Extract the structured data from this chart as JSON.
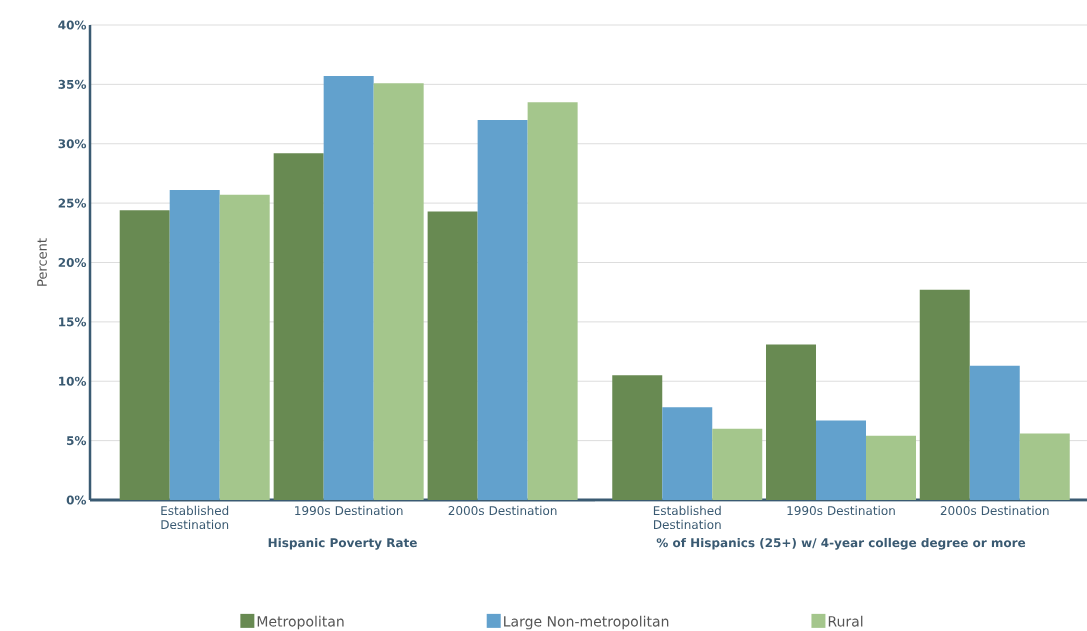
{
  "chart_data": [
    {
      "type": "bar",
      "xlabel": "Hispanic Poverty Rate",
      "ylabel": "Percent",
      "categories": [
        "Established Destination",
        "1990s Destination",
        "2000s Destination"
      ],
      "series": [
        {
          "name": "Metropolitan",
          "color": "#688a52",
          "values": [
            24.4,
            29.2,
            24.3
          ]
        },
        {
          "name": "Large Non-metropolitan",
          "color": "#62a1cd",
          "values": [
            26.1,
            35.7,
            32.0
          ]
        },
        {
          "name": "Rural",
          "color": "#a4c68c",
          "values": [
            25.7,
            35.1,
            33.5
          ]
        }
      ],
      "ylim": [
        0,
        40
      ],
      "yticks": [
        {
          "value": 0,
          "label": "0%"
        },
        {
          "value": 5,
          "label": "5%"
        },
        {
          "value": 10,
          "label": "10%"
        },
        {
          "value": 15,
          "label": "15%"
        },
        {
          "value": 20,
          "label": "20%"
        },
        {
          "value": 25,
          "label": "25%"
        },
        {
          "value": 30,
          "label": "30%"
        },
        {
          "value": 35,
          "label": "35%"
        },
        {
          "value": 40,
          "label": "40%"
        }
      ],
      "grid": "y",
      "legend": "bottom"
    },
    {
      "type": "bar",
      "xlabel": "% of Hispanics (25+) w/ 4-year college degree or more",
      "categories": [
        "Established Destination",
        "1990s Destination",
        "2000s Destination"
      ],
      "series": [
        {
          "color": "#688a52",
          "values": [
            10.5,
            13.1,
            17.7
          ]
        },
        {
          "color": "#62a1cd",
          "values": [
            7.8,
            6.7,
            11.3
          ]
        },
        {
          "color": "#a4c68c",
          "values": [
            6.0,
            5.4,
            5.6
          ]
        }
      ],
      "ylim": [
        0,
        40
      ],
      "yticks": [
        0,
        5,
        10,
        15,
        20,
        25,
        30,
        35,
        40
      ],
      "grid": "y",
      "tick_labels": "x"
    }
  ]
}
